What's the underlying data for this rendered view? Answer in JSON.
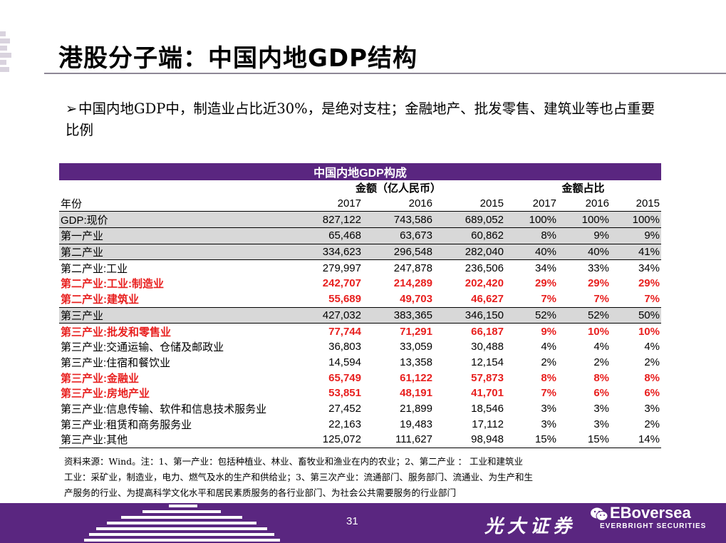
{
  "slide": {
    "title": "港股分子端：中国内地GDP结构",
    "bullet_arrow": "➢",
    "bullet": "中国内地GDP中，制造业占比近30%，是绝对支柱；金融地产、批发零售、建筑业等也占重要比例"
  },
  "table": {
    "title": "中国内地GDP构成",
    "group_amount": "金额（亿人民币）",
    "group_share": "金额占比",
    "year_label": "年份",
    "years": [
      "2017",
      "2016",
      "2015",
      "2017",
      "2016",
      "2015"
    ],
    "rows": [
      {
        "label": "GDP:现价",
        "values": [
          "827,122",
          "743,586",
          "689,052",
          "100%",
          "100%",
          "100%"
        ]
      },
      {
        "label": "第一产业",
        "values": [
          "65,468",
          "63,673",
          "60,862",
          "8%",
          "9%",
          "9%"
        ]
      },
      {
        "label": "第二产业",
        "values": [
          "334,623",
          "296,548",
          "282,040",
          "40%",
          "40%",
          "41%"
        ]
      },
      {
        "label": "第二产业:工业",
        "values": [
          "279,997",
          "247,878",
          "236,506",
          "34%",
          "33%",
          "34%"
        ]
      },
      {
        "label": "第二产业:工业:制造业",
        "values": [
          "242,707",
          "214,289",
          "202,420",
          "29%",
          "29%",
          "29%"
        ]
      },
      {
        "label": "第二产业:建筑业",
        "values": [
          "55,689",
          "49,703",
          "46,627",
          "7%",
          "7%",
          "7%"
        ]
      },
      {
        "label": "第三产业",
        "values": [
          "427,032",
          "383,365",
          "346,150",
          "52%",
          "52%",
          "50%"
        ]
      },
      {
        "label": "第三产业:批发和零售业",
        "values": [
          "77,744",
          "71,291",
          "66,187",
          "9%",
          "10%",
          "10%"
        ]
      },
      {
        "label": "第三产业:交通运输、仓储及邮政业",
        "values": [
          "36,803",
          "33,059",
          "30,488",
          "4%",
          "4%",
          "4%"
        ]
      },
      {
        "label": "第三产业:住宿和餐饮业",
        "values": [
          "14,594",
          "13,358",
          "12,154",
          "2%",
          "2%",
          "2%"
        ]
      },
      {
        "label": "第三产业:金融业",
        "values": [
          "65,749",
          "61,122",
          "57,873",
          "8%",
          "8%",
          "8%"
        ]
      },
      {
        "label": "第三产业:房地产业",
        "values": [
          "53,851",
          "48,191",
          "41,701",
          "7%",
          "6%",
          "6%"
        ]
      },
      {
        "label": "第三产业:信息传输、软件和信息技术服务业",
        "values": [
          "27,452",
          "21,899",
          "18,546",
          "3%",
          "3%",
          "3%"
        ]
      },
      {
        "label": "第三产业:租赁和商务服务业",
        "values": [
          "22,163",
          "19,483",
          "17,112",
          "3%",
          "3%",
          "2%"
        ]
      },
      {
        "label": "第三产业:其他",
        "values": [
          "125,072",
          "111,627",
          "98,948",
          "15%",
          "15%",
          "14%"
        ]
      }
    ]
  },
  "note": {
    "line1": "资料来源：Wind。注：1、第一产业：包括种植业、林业、畜牧业和渔业在内的农业；2、第二产业 ： 工业和建筑业",
    "line2": "工业：采矿业，制造业，电力、燃气及水的生产和供给业；3、第三次产业：流通部门、服务部门、流通业、为生产和生",
    "line3": "产服务的行业、为提高科学文化水平和居民素质服务的各行业部门、为社会公共需要服务的行业部门"
  },
  "footer": {
    "page_number": "31",
    "brand_cn": "光大证券",
    "brand_badge": "EBoversea",
    "brand_en": "EVERBRIGHT SECURITIES"
  },
  "colors": {
    "accent_purple": "#5a2680",
    "highlight_red": "#e8201f",
    "shade_gray": "#d8d8d8"
  }
}
